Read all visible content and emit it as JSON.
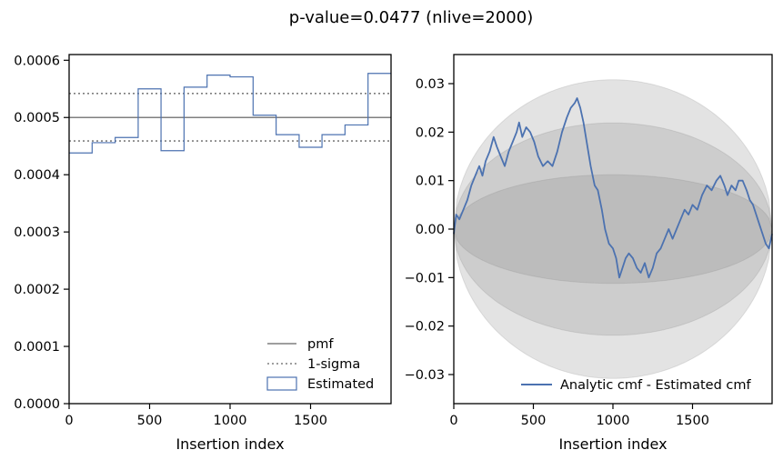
{
  "figure": {
    "suptitle": "p-value=0.0477 (nlive=2000)"
  },
  "chart_data": [
    {
      "type": "step",
      "xlabel": "Insertion index",
      "ylabel": "",
      "xlim": [
        0,
        2000
      ],
      "ylim": [
        0,
        0.00061
      ],
      "xticks": [
        0,
        500,
        1000,
        1500
      ],
      "xtick_labels": [
        "0",
        "500",
        "1000",
        "1500"
      ],
      "yticks": [
        0,
        0.0001,
        0.0002,
        0.0003,
        0.0004,
        0.0005,
        0.0006
      ],
      "ytick_labels": [
        "0.0000",
        "0.0001",
        "0.0002",
        "0.0003",
        "0.0004",
        "0.0005",
        "0.0006"
      ],
      "pmf": 0.0005,
      "sigma_band": [
        0.000459,
        0.000542
      ],
      "bin_edges": [
        0,
        143,
        286,
        429,
        571,
        714,
        857,
        1000,
        1143,
        1286,
        1429,
        1571,
        1714,
        1857,
        2000
      ],
      "estimated": [
        0.000438,
        0.000456,
        0.000465,
        0.00055,
        0.000442,
        0.000553,
        0.000574,
        0.000571,
        0.000504,
        0.00047,
        0.000448,
        0.00047,
        0.000487,
        0.000577
      ],
      "legend": {
        "location": "lower right",
        "entries": [
          "pmf",
          "1-sigma",
          "Estimated"
        ]
      },
      "colors": {
        "pmf": "#7f7f7f",
        "sigma": "#7f7f7f",
        "estimated": "#4c72b0"
      }
    },
    {
      "type": "line",
      "xlabel": "Insertion index",
      "ylabel": "",
      "xlim": [
        0,
        2000
      ],
      "ylim": [
        -0.036,
        0.036
      ],
      "xticks": [
        0,
        500,
        1000,
        1500
      ],
      "xtick_labels": [
        "0",
        "500",
        "1000",
        "1500"
      ],
      "yticks": [
        -0.03,
        -0.02,
        -0.01,
        0.0,
        0.01,
        0.02,
        0.03
      ],
      "ytick_labels": [
        "−0.03",
        "−0.02",
        "−0.01",
        "0.00",
        "0.01",
        "0.02",
        "0.03"
      ],
      "band_1sigma_max": 0.0112,
      "band_2sigma_max": 0.0219,
      "band_3sigma_max": 0.0308,
      "series": [
        {
          "name": "Analytic cmf - Estimated cmf",
          "x": [
            0,
            15,
            35,
            60,
            85,
            110,
            135,
            160,
            180,
            200,
            225,
            250,
            270,
            295,
            320,
            345,
            370,
            395,
            410,
            430,
            455,
            480,
            505,
            530,
            560,
            590,
            620,
            650,
            680,
            710,
            735,
            760,
            775,
            795,
            815,
            835,
            860,
            885,
            905,
            930,
            950,
            975,
            1000,
            1020,
            1040,
            1060,
            1080,
            1100,
            1125,
            1150,
            1175,
            1200,
            1225,
            1250,
            1275,
            1300,
            1325,
            1350,
            1375,
            1400,
            1425,
            1450,
            1475,
            1500,
            1530,
            1560,
            1590,
            1620,
            1650,
            1675,
            1700,
            1720,
            1745,
            1770,
            1790,
            1815,
            1840,
            1860,
            1880,
            1900,
            1920,
            1940,
            1960,
            1980,
            2000
          ],
          "values": [
            -0.001,
            0.003,
            0.002,
            0.004,
            0.006,
            0.009,
            0.011,
            0.013,
            0.011,
            0.014,
            0.016,
            0.019,
            0.017,
            0.015,
            0.013,
            0.016,
            0.018,
            0.02,
            0.022,
            0.019,
            0.021,
            0.02,
            0.018,
            0.015,
            0.013,
            0.014,
            0.013,
            0.016,
            0.02,
            0.023,
            0.025,
            0.026,
            0.027,
            0.025,
            0.022,
            0.018,
            0.013,
            0.009,
            0.008,
            0.004,
            0.0,
            -0.003,
            -0.004,
            -0.006,
            -0.01,
            -0.008,
            -0.006,
            -0.005,
            -0.006,
            -0.008,
            -0.009,
            -0.007,
            -0.01,
            -0.008,
            -0.005,
            -0.004,
            -0.002,
            0.0,
            -0.002,
            0.0,
            0.002,
            0.004,
            0.003,
            0.005,
            0.004,
            0.007,
            0.009,
            0.008,
            0.01,
            0.011,
            0.009,
            0.007,
            0.009,
            0.008,
            0.01,
            0.01,
            0.008,
            0.006,
            0.005,
            0.003,
            0.001,
            -0.001,
            -0.003,
            -0.004,
            -0.001
          ]
        }
      ],
      "legend": {
        "location": "lower right",
        "entries": [
          "Analytic cmf - Estimated cmf"
        ]
      },
      "colors": {
        "line": "#4c72b0",
        "band": "#7f7f7f"
      }
    }
  ]
}
